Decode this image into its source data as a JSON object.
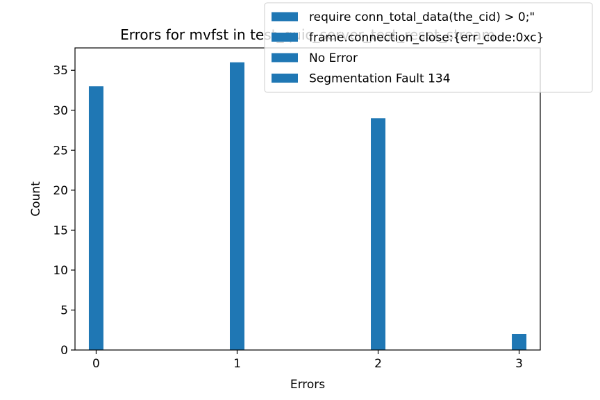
{
  "chart_data": {
    "type": "bar",
    "title": "Errors for mvfst in test_quic_server_test_reset_stream",
    "xlabel": "Errors",
    "ylabel": "Count",
    "x": [
      0,
      1,
      2,
      3
    ],
    "values": [
      33,
      36,
      29,
      2
    ],
    "xticks": [
      "0",
      "1",
      "2",
      "3"
    ],
    "yticks": [
      "0",
      "5",
      "10",
      "15",
      "20",
      "25",
      "30",
      "35"
    ],
    "xlim": [
      -0.15,
      3.15
    ],
    "ylim": [
      0,
      37.8
    ],
    "bar_color": "#1f77b4",
    "legend_position": "top-right",
    "legend": [
      "require conn_total_data(the_cid) > 0;\"",
      "frame.connection_close:{err_code:0xc}",
      "No Error",
      "Segmentation Fault 134"
    ]
  }
}
